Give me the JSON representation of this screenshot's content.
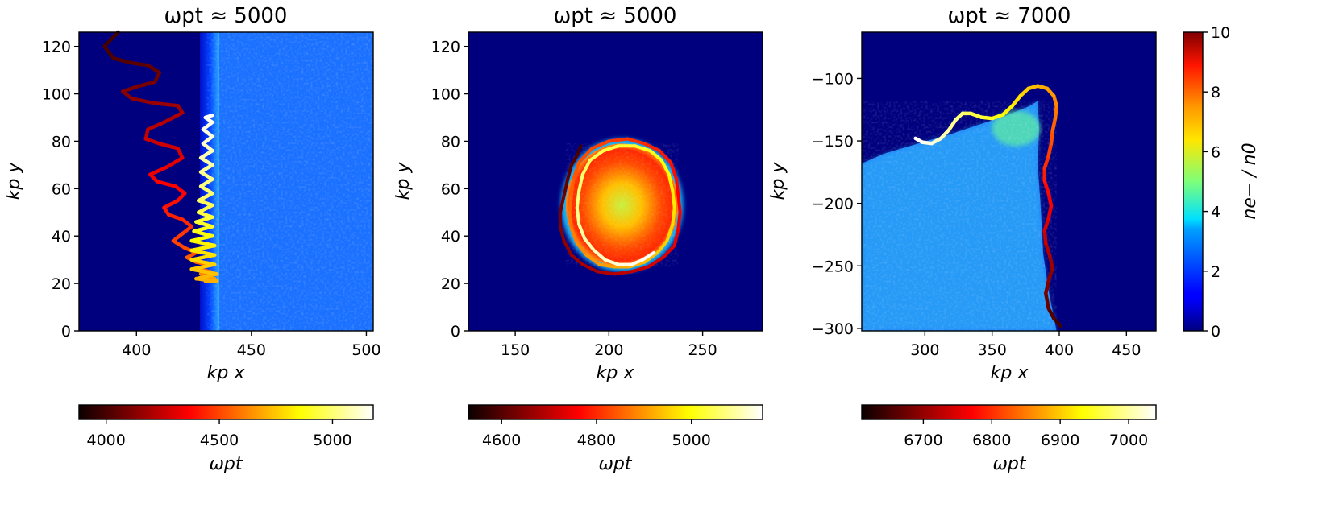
{
  "chart_data": [
    {
      "type": "heatmap",
      "title": "ωpt ≈ 5000",
      "xlabel": "kp x",
      "ylabel": "kp y",
      "xlim": [
        375,
        503
      ],
      "ylim": [
        0,
        126
      ],
      "xticks": [
        400,
        450,
        500
      ],
      "yticks": [
        0,
        20,
        40,
        60,
        80,
        100,
        120
      ],
      "heatmap": {
        "kind": "wall",
        "boundary_x": 430,
        "plateau_value": 2.2
      },
      "trajectory": {
        "colormap": "hot",
        "color_axis_label": "ωpt",
        "time_range": [
          3880,
          5180
        ],
        "colorbar_ticks": [
          4000,
          4500,
          5000
        ],
        "points": [
          [
            392,
            126
          ],
          [
            386,
            120
          ],
          [
            390,
            115
          ],
          [
            398,
            113
          ],
          [
            405,
            112
          ],
          [
            410,
            109
          ],
          [
            408,
            105
          ],
          [
            400,
            103
          ],
          [
            394,
            101
          ],
          [
            398,
            98
          ],
          [
            408,
            96
          ],
          [
            418,
            95
          ],
          [
            420,
            92
          ],
          [
            412,
            88
          ],
          [
            405,
            85
          ],
          [
            404,
            81
          ],
          [
            410,
            79
          ],
          [
            418,
            77
          ],
          [
            420,
            73
          ],
          [
            413,
            69
          ],
          [
            406,
            66
          ],
          [
            409,
            63
          ],
          [
            417,
            61
          ],
          [
            421,
            58
          ],
          [
            418,
            55
          ],
          [
            412,
            52
          ],
          [
            414,
            49
          ],
          [
            420,
            47
          ],
          [
            424,
            44
          ],
          [
            420,
            41
          ],
          [
            416,
            38
          ],
          [
            421,
            35
          ],
          [
            426,
            33
          ],
          [
            422,
            31
          ],
          [
            426,
            29
          ],
          [
            431,
            28
          ],
          [
            427,
            26
          ],
          [
            432,
            25
          ],
          [
            428,
            24
          ],
          [
            433,
            23
          ],
          [
            429,
            22
          ],
          [
            434,
            22
          ],
          [
            430,
            21
          ],
          [
            435,
            21
          ],
          [
            426,
            22
          ],
          [
            435,
            24
          ],
          [
            424,
            26
          ],
          [
            434,
            28
          ],
          [
            424,
            30
          ],
          [
            434,
            32
          ],
          [
            424,
            34
          ],
          [
            434,
            36
          ],
          [
            424,
            38
          ],
          [
            433,
            40
          ],
          [
            425,
            42
          ],
          [
            433,
            44
          ],
          [
            426,
            46
          ],
          [
            433,
            48
          ],
          [
            427,
            50
          ],
          [
            433,
            53
          ],
          [
            427,
            55
          ],
          [
            433,
            58
          ],
          [
            428,
            61
          ],
          [
            433,
            64
          ],
          [
            428,
            67
          ],
          [
            433,
            70
          ],
          [
            428,
            73
          ],
          [
            433,
            76
          ],
          [
            429,
            79
          ],
          [
            433,
            82
          ],
          [
            429,
            85
          ],
          [
            433,
            88
          ],
          [
            430,
            90
          ],
          [
            433,
            91
          ]
        ]
      }
    },
    {
      "type": "heatmap",
      "title": "ωpt ≈ 5000",
      "xlabel": "kp x",
      "ylabel": "kp y",
      "xlim": [
        125,
        282
      ],
      "ylim": [
        0,
        126
      ],
      "xticks": [
        150,
        200,
        250
      ],
      "yticks": [
        0,
        20,
        40,
        60,
        80,
        100,
        120
      ],
      "heatmap": {
        "kind": "blob",
        "center": [
          207,
          53
        ],
        "radius": [
          30,
          26
        ],
        "peak_value": 5.0,
        "rim_value": 8.5
      },
      "trajectory": {
        "colormap": "hot",
        "color_axis_label": "ωpt",
        "time_range": [
          4530,
          5150
        ],
        "colorbar_ticks": [
          4600,
          4800,
          5000
        ],
        "points": [
          [
            185,
            78
          ],
          [
            183,
            74
          ],
          [
            180,
            70
          ],
          [
            178,
            64
          ],
          [
            176,
            57
          ],
          [
            174,
            50
          ],
          [
            174,
            44
          ],
          [
            176,
            38
          ],
          [
            180,
            32
          ],
          [
            186,
            28
          ],
          [
            194,
            25
          ],
          [
            203,
            24
          ],
          [
            212,
            25
          ],
          [
            221,
            27
          ],
          [
            229,
            31
          ],
          [
            235,
            36
          ],
          [
            237,
            43
          ],
          [
            238,
            50
          ],
          [
            237,
            57
          ],
          [
            236,
            64
          ],
          [
            233,
            71
          ],
          [
            227,
            76
          ],
          [
            219,
            79
          ],
          [
            210,
            81
          ],
          [
            200,
            80
          ],
          [
            191,
            77
          ],
          [
            184,
            71
          ],
          [
            181,
            64
          ],
          [
            180,
            57
          ],
          [
            179,
            50
          ],
          [
            180,
            43
          ],
          [
            183,
            37
          ],
          [
            188,
            32
          ],
          [
            195,
            28
          ],
          [
            203,
            27
          ],
          [
            211,
            27
          ],
          [
            219,
            29
          ],
          [
            226,
            33
          ],
          [
            231,
            38
          ],
          [
            234,
            45
          ],
          [
            235,
            52
          ],
          [
            234,
            59
          ],
          [
            232,
            66
          ],
          [
            228,
            72
          ],
          [
            222,
            76
          ],
          [
            214,
            78
          ],
          [
            205,
            78
          ],
          [
            197,
            76
          ],
          [
            190,
            72
          ],
          [
            186,
            66
          ],
          [
            184,
            59
          ],
          [
            183,
            52
          ],
          [
            184,
            45
          ],
          [
            187,
            39
          ],
          [
            192,
            34
          ],
          [
            198,
            30
          ],
          [
            205,
            28
          ],
          [
            212,
            28
          ],
          [
            218,
            30
          ],
          [
            224,
            33
          ]
        ]
      }
    },
    {
      "type": "heatmap",
      "title": "ωpt ≈ 7000",
      "xlabel": "kp x",
      "ylabel": "kp y",
      "xlim": [
        253,
        472
      ],
      "ylim": [
        -302,
        -63
      ],
      "xticks": [
        300,
        350,
        400,
        450
      ],
      "yticks": [
        -300,
        -250,
        -200,
        -150,
        -100
      ],
      "heatmap": {
        "kind": "wedge",
        "plateau_value": 2.3
      },
      "trajectory": {
        "colormap": "hot",
        "color_axis_label": "ωpt",
        "time_range": [
          6610,
          7040
        ],
        "colorbar_ticks": [
          6700,
          6800,
          6900,
          7000
        ],
        "points": [
          [
            401,
            -298
          ],
          [
            396,
            -292
          ],
          [
            392,
            -284
          ],
          [
            390,
            -272
          ],
          [
            392,
            -262
          ],
          [
            395,
            -252
          ],
          [
            393,
            -242
          ],
          [
            390,
            -232
          ],
          [
            389,
            -222
          ],
          [
            392,
            -212
          ],
          [
            394,
            -202
          ],
          [
            392,
            -192
          ],
          [
            389,
            -182
          ],
          [
            389,
            -172
          ],
          [
            392,
            -162
          ],
          [
            394,
            -152
          ],
          [
            395,
            -142
          ],
          [
            397,
            -132
          ],
          [
            398,
            -122
          ],
          [
            396,
            -114
          ],
          [
            391,
            -108
          ],
          [
            384,
            -106
          ],
          [
            377,
            -108
          ],
          [
            371,
            -114
          ],
          [
            365,
            -122
          ],
          [
            358,
            -129
          ],
          [
            350,
            -132
          ],
          [
            342,
            -131
          ],
          [
            334,
            -128
          ],
          [
            328,
            -128
          ],
          [
            323,
            -133
          ],
          [
            318,
            -141
          ],
          [
            312,
            -148
          ],
          [
            305,
            -152
          ],
          [
            298,
            -151
          ],
          [
            293,
            -148
          ]
        ]
      }
    }
  ],
  "density_colorbar": {
    "label": "ne− / n0",
    "range": [
      0,
      10
    ],
    "ticks": [
      0,
      2,
      4,
      6,
      8,
      10
    ],
    "colormap": "jet"
  }
}
